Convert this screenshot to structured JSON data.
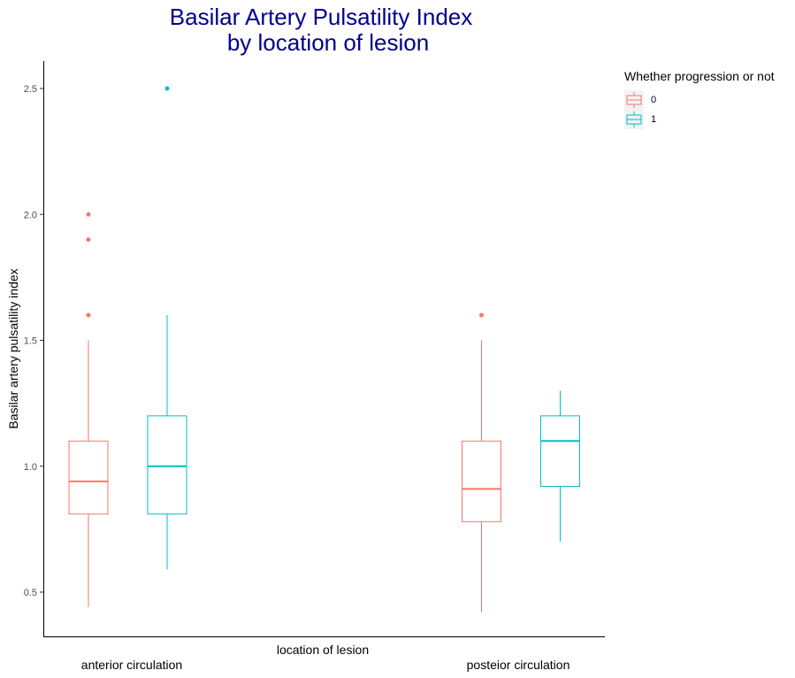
{
  "chart_data": {
    "type": "boxplot",
    "title_lines": [
      "Basilar Artery Pulsatility Index",
      "by location of lesion"
    ],
    "xlabel": "location of lesion",
    "ylabel": "Basilar artery pulsatility index",
    "ylim": [
      0.3,
      2.6
    ],
    "yticks": [
      0.5,
      1.0,
      1.5,
      2.0,
      2.5
    ],
    "ytick_labels": [
      "0.5",
      "1.0",
      "1.5",
      "2.0",
      "2.5"
    ],
    "categories": [
      "anterior circulation",
      "posteior circulation"
    ],
    "grid": false,
    "legend": {
      "title": "Whether progression or not",
      "position": "right",
      "entries": [
        {
          "label": "0",
          "color": "#F8766D"
        },
        {
          "label": "1",
          "color": "#00BFC4"
        }
      ]
    },
    "series": [
      {
        "name": "0",
        "color": "#F8766D",
        "boxes": [
          {
            "category": "anterior circulation",
            "whisker_low": 0.44,
            "q1": 0.81,
            "median": 0.94,
            "q3": 1.1,
            "whisker_high": 1.5,
            "outliers": [
              1.6,
              1.9,
              2.0
            ]
          },
          {
            "category": "posteior circulation",
            "whisker_low": 0.42,
            "q1": 0.78,
            "median": 0.91,
            "q3": 1.1,
            "whisker_high": 1.5,
            "outliers": [
              1.6
            ]
          }
        ]
      },
      {
        "name": "1",
        "color": "#00BFC4",
        "boxes": [
          {
            "category": "anterior circulation",
            "whisker_low": 0.59,
            "q1": 0.81,
            "median": 1.0,
            "q3": 1.2,
            "whisker_high": 1.6,
            "outliers": [
              2.5
            ]
          },
          {
            "category": "posteior circulation",
            "whisker_low": 0.7,
            "q1": 0.92,
            "median": 1.1,
            "q3": 1.2,
            "whisker_high": 1.3,
            "outliers": []
          }
        ]
      }
    ]
  }
}
